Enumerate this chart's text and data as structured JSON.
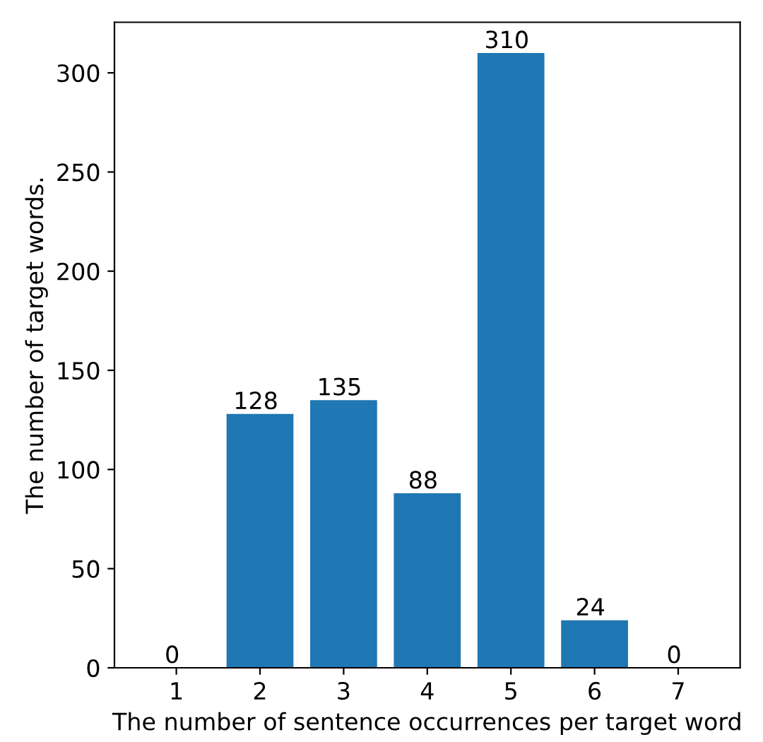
{
  "chart_data": {
    "type": "bar",
    "xlabel": "The number of sentence occurrences per target word",
    "ylabel": "The number of target words.",
    "categories": [
      "1",
      "2",
      "3",
      "4",
      "5",
      "6",
      "7"
    ],
    "values": [
      0,
      128,
      135,
      88,
      310,
      24,
      0
    ],
    "color": "#1f77b4",
    "data_labels": true,
    "ylim": [
      0,
      325.5
    ],
    "yticks": [
      0,
      50,
      100,
      150,
      200,
      250,
      300
    ],
    "grid": false
  }
}
